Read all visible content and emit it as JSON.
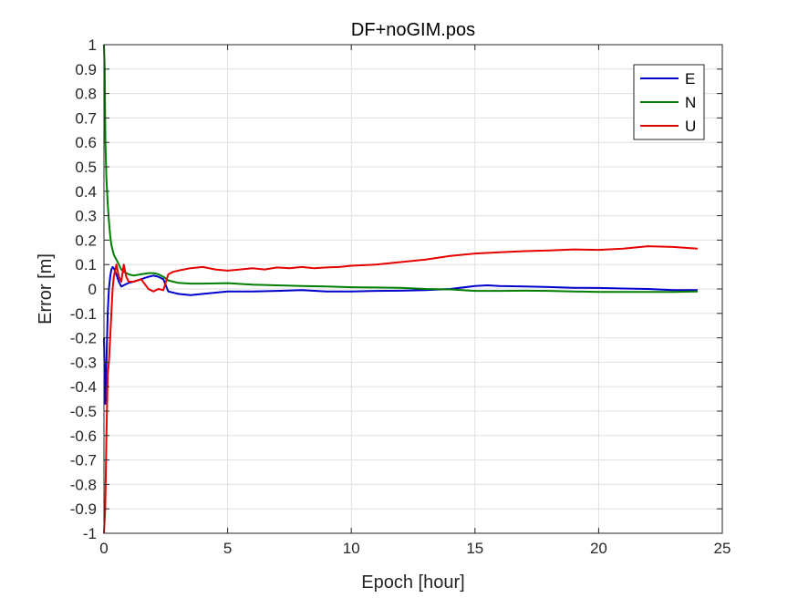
{
  "chart_data": {
    "type": "line",
    "title": "DF+noGIM.pos",
    "xlabel": "Epoch [hour]",
    "ylabel": "Error [m]",
    "xlim": [
      0,
      25
    ],
    "ylim": [
      -1,
      1
    ],
    "xticks": [
      0,
      5,
      10,
      15,
      20,
      25
    ],
    "yticks": [
      -1,
      -0.9,
      -0.8,
      -0.7,
      -0.6,
      -0.5,
      -0.4,
      -0.3,
      -0.2,
      -0.1,
      0,
      0.1,
      0.2,
      0.3,
      0.4,
      0.5,
      0.6,
      0.7,
      0.8,
      0.9,
      1
    ],
    "grid": true,
    "legend_position": "top-right",
    "series": [
      {
        "name": "E",
        "color": "#0000cc",
        "x": [
          0.0,
          0.05,
          0.1,
          0.15,
          0.2,
          0.25,
          0.3,
          0.35,
          0.4,
          0.5,
          0.6,
          0.7,
          0.8,
          0.9,
          1.0,
          1.2,
          1.5,
          1.8,
          2.0,
          2.2,
          2.4,
          2.6,
          3.0,
          3.5,
          4.0,
          5.0,
          6.0,
          7.0,
          8.0,
          9.0,
          10.0,
          11.0,
          12.0,
          13.0,
          14.0,
          15.0,
          15.5,
          16.0,
          17.0,
          18.0,
          19.0,
          20.0,
          21.0,
          22.0,
          23.0,
          24.0
        ],
        "y": [
          -0.2,
          -0.47,
          -0.3,
          -0.1,
          0.0,
          0.05,
          0.08,
          0.09,
          0.085,
          0.06,
          0.03,
          0.01,
          0.015,
          0.02,
          0.025,
          0.03,
          0.04,
          0.05,
          0.055,
          0.05,
          0.04,
          -0.01,
          -0.02,
          -0.025,
          -0.02,
          -0.01,
          -0.01,
          -0.008,
          -0.005,
          -0.01,
          -0.01,
          -0.008,
          -0.007,
          -0.005,
          0.0,
          0.012,
          0.015,
          0.012,
          0.01,
          0.008,
          0.005,
          0.004,
          0.002,
          0.0,
          -0.005,
          -0.005
        ]
      },
      {
        "name": "N",
        "color": "#007f00",
        "x": [
          0.0,
          0.03,
          0.06,
          0.1,
          0.15,
          0.2,
          0.25,
          0.3,
          0.4,
          0.5,
          0.6,
          0.7,
          0.8,
          1.0,
          1.2,
          1.5,
          1.8,
          2.0,
          2.2,
          2.4,
          2.6,
          3.0,
          3.5,
          4.0,
          5.0,
          6.0,
          7.0,
          8.0,
          9.0,
          10.0,
          11.0,
          12.0,
          13.0,
          14.0,
          15.0,
          16.0,
          17.0,
          18.0,
          19.0,
          20.0,
          21.0,
          22.0,
          23.0,
          24.0
        ],
        "y": [
          1.0,
          0.9,
          0.6,
          0.45,
          0.35,
          0.28,
          0.22,
          0.18,
          0.14,
          0.12,
          0.1,
          0.08,
          0.07,
          0.06,
          0.055,
          0.06,
          0.065,
          0.065,
          0.06,
          0.05,
          0.035,
          0.025,
          0.022,
          0.022,
          0.024,
          0.018,
          0.015,
          0.012,
          0.01,
          0.007,
          0.006,
          0.005,
          0.0,
          -0.002,
          -0.008,
          -0.008,
          -0.007,
          -0.008,
          -0.01,
          -0.012,
          -0.012,
          -0.012,
          -0.012,
          -0.01
        ]
      },
      {
        "name": "U",
        "color": "#e60000",
        "x": [
          0.0,
          0.05,
          0.1,
          0.15,
          0.2,
          0.25,
          0.3,
          0.35,
          0.4,
          0.5,
          0.6,
          0.7,
          0.8,
          0.9,
          1.0,
          1.2,
          1.5,
          1.8,
          2.0,
          2.2,
          2.4,
          2.6,
          2.8,
          3.0,
          3.5,
          4.0,
          4.5,
          5.0,
          5.5,
          6.0,
          6.5,
          7.0,
          7.5,
          8.0,
          8.5,
          9.0,
          9.5,
          10.0,
          11.0,
          12.0,
          13.0,
          14.0,
          15.0,
          16.0,
          17.0,
          18.0,
          19.0,
          20.0,
          21.0,
          22.0,
          23.0,
          24.0
        ],
        "y": [
          -1.0,
          -0.9,
          -0.6,
          -0.35,
          -0.3,
          -0.2,
          -0.1,
          0.0,
          0.05,
          0.1,
          0.05,
          0.03,
          0.1,
          0.05,
          0.03,
          0.03,
          0.04,
          0.0,
          -0.01,
          0.0,
          -0.005,
          0.06,
          0.07,
          0.075,
          0.085,
          0.09,
          0.08,
          0.075,
          0.08,
          0.085,
          0.08,
          0.088,
          0.085,
          0.09,
          0.085,
          0.088,
          0.09,
          0.095,
          0.1,
          0.11,
          0.12,
          0.135,
          0.145,
          0.15,
          0.155,
          0.158,
          0.162,
          0.16,
          0.165,
          0.175,
          0.172,
          0.165
        ]
      }
    ]
  }
}
